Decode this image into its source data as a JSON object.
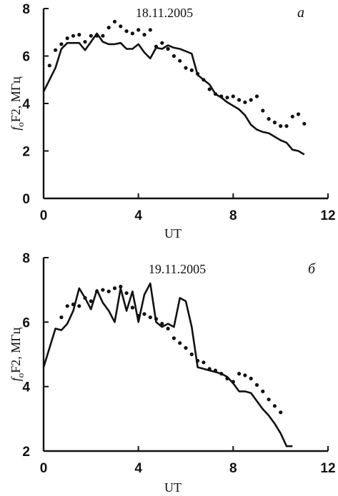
{
  "chart_data": [
    {
      "type": "line",
      "title": "18.11.2005",
      "panel_label": "а",
      "xlabel": "UT",
      "ylabel_italic": "f",
      "ylabel_sub": "o",
      "ylabel_rest": "F2, МГц",
      "xlim": [
        0,
        12
      ],
      "ylim": [
        0,
        8
      ],
      "xticks": [
        0,
        4,
        8,
        12
      ],
      "yticks": [
        0,
        2,
        4,
        6,
        8
      ],
      "xtick_labels": [
        "0",
        "4",
        "8",
        "12"
      ],
      "ytick_labels": [
        "0",
        "2",
        "4",
        "6",
        "8"
      ],
      "series": [
        {
          "style": "solid",
          "x": [
            0,
            0.25,
            0.5,
            0.75,
            1.0,
            1.25,
            1.5,
            1.75,
            2.0,
            2.25,
            2.5,
            2.75,
            3.0,
            3.25,
            3.5,
            3.75,
            4.0,
            4.25,
            4.5,
            4.75,
            5.0,
            5.25,
            5.5,
            5.75,
            6.0,
            6.25,
            6.5,
            6.75,
            7.0,
            7.25,
            7.5,
            7.75,
            8.0,
            8.25,
            8.5,
            8.75,
            9.0,
            9.25,
            9.5,
            9.75,
            10.0,
            10.25,
            10.5,
            10.75,
            11.0
          ],
          "y": [
            4.5,
            5.0,
            5.5,
            6.3,
            6.55,
            6.55,
            6.55,
            6.25,
            6.6,
            6.95,
            6.6,
            6.5,
            6.5,
            6.55,
            6.3,
            6.3,
            6.5,
            6.15,
            5.9,
            6.35,
            6.3,
            6.45,
            6.35,
            6.3,
            6.2,
            6.1,
            5.2,
            5.0,
            4.8,
            4.4,
            4.25,
            4.05,
            3.9,
            3.75,
            3.5,
            3.1,
            2.9,
            2.8,
            2.75,
            2.6,
            2.45,
            2.35,
            2.05,
            2.0,
            1.85
          ]
        },
        {
          "style": "dotted",
          "x": [
            0.25,
            0.5,
            0.75,
            1.0,
            1.25,
            1.5,
            1.75,
            2.0,
            2.25,
            2.5,
            2.75,
            3.0,
            3.25,
            3.5,
            3.75,
            4.0,
            4.25,
            4.5,
            4.75,
            5.0,
            5.25,
            5.5,
            5.75,
            6.0,
            6.25,
            6.5,
            6.75,
            7.0,
            7.25,
            7.5,
            7.75,
            8.0,
            8.25,
            8.5,
            8.75,
            9.0,
            9.25,
            9.5,
            9.75,
            10.0,
            10.25,
            10.5,
            10.75,
            11.0
          ],
          "y": [
            5.6,
            6.25,
            6.5,
            6.75,
            6.85,
            6.9,
            6.6,
            6.85,
            6.85,
            6.85,
            7.2,
            7.45,
            7.25,
            7.05,
            6.95,
            7.1,
            6.9,
            7.1,
            6.4,
            6.55,
            6.3,
            6.0,
            5.8,
            5.5,
            5.4,
            5.25,
            5.0,
            4.6,
            4.4,
            4.3,
            4.25,
            4.3,
            4.15,
            4.05,
            4.15,
            4.3,
            3.7,
            3.35,
            3.2,
            3.05,
            3.05,
            3.45,
            3.55,
            3.15
          ]
        }
      ]
    },
    {
      "type": "line",
      "title": "19.11.2005",
      "panel_label": "б",
      "xlabel": "UT",
      "ylabel_italic": "f",
      "ylabel_sub": "o",
      "ylabel_rest": "F2, МГц",
      "xlim": [
        0,
        12
      ],
      "ylim": [
        2,
        8
      ],
      "xticks": [
        0,
        4,
        8,
        12
      ],
      "yticks": [
        2,
        4,
        6,
        8
      ],
      "xtick_labels": [
        "0",
        "4",
        "8",
        "12"
      ],
      "ytick_labels": [
        "2",
        "4",
        "6",
        "8"
      ],
      "series": [
        {
          "style": "solid",
          "x": [
            0,
            0.25,
            0.5,
            0.75,
            1.0,
            1.25,
            1.5,
            1.75,
            2.0,
            2.25,
            2.5,
            2.75,
            3.0,
            3.25,
            3.5,
            3.75,
            4.0,
            4.25,
            4.5,
            4.75,
            5.0,
            5.25,
            5.5,
            5.75,
            6.0,
            6.25,
            6.5,
            6.75,
            7.0,
            7.25,
            7.5,
            7.75,
            8.0,
            8.25,
            8.5,
            8.75,
            9.0,
            9.25,
            9.5,
            9.75,
            10.0,
            10.25,
            10.5
          ],
          "y": [
            4.6,
            5.2,
            5.8,
            5.75,
            5.95,
            6.35,
            7.05,
            6.75,
            6.4,
            7.0,
            6.6,
            6.35,
            6.0,
            7.05,
            6.35,
            6.95,
            6.0,
            6.85,
            7.2,
            6.0,
            5.85,
            5.95,
            5.85,
            6.75,
            6.65,
            5.85,
            4.6,
            4.55,
            4.5,
            4.45,
            4.4,
            4.3,
            4.1,
            3.85,
            3.85,
            3.8,
            3.55,
            3.3,
            3.1,
            2.85,
            2.55,
            2.15,
            2.15
          ]
        },
        {
          "style": "dotted",
          "x": [
            0.75,
            1.0,
            1.25,
            1.5,
            1.75,
            2.0,
            2.25,
            2.5,
            2.75,
            3.0,
            3.25,
            3.5,
            3.75,
            4.0,
            4.25,
            4.5,
            4.75,
            5.0,
            5.25,
            5.5,
            5.75,
            6.0,
            6.25,
            6.5,
            6.75,
            7.0,
            7.25,
            7.5,
            7.75,
            8.0,
            8.25,
            8.5,
            8.75,
            9.0,
            9.25,
            9.5,
            9.75,
            10.0
          ],
          "y": [
            6.15,
            6.5,
            6.55,
            6.5,
            6.75,
            6.65,
            6.95,
            7.0,
            6.95,
            7.05,
            7.1,
            6.9,
            6.45,
            6.2,
            6.25,
            6.15,
            6.1,
            5.95,
            5.8,
            5.5,
            5.35,
            5.2,
            5.0,
            4.8,
            4.75,
            4.55,
            4.5,
            4.4,
            4.25,
            4.15,
            4.4,
            4.35,
            4.25,
            4.05,
            3.85,
            3.6,
            3.4,
            3.2
          ]
        }
      ]
    }
  ]
}
